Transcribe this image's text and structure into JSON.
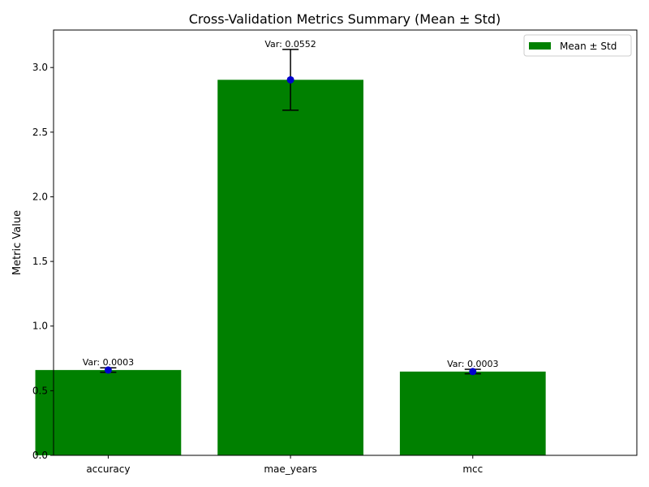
{
  "chart_data": {
    "type": "bar",
    "title": "Cross-Validation Metrics Summary (Mean ± Std)",
    "xlabel": "",
    "ylabel": "Metric Value",
    "categories": [
      "accuracy",
      "mae_years",
      "mcc"
    ],
    "values": [
      0.66,
      2.905,
      0.648
    ],
    "std": [
      0.0173,
      0.235,
      0.0173
    ],
    "annotations": [
      "Var: 0.0003",
      "Var: 0.0552",
      "Var: 0.0003"
    ],
    "ylim": [
      0,
      3.29
    ],
    "yticks": [
      0.0,
      0.5,
      1.0,
      1.5,
      2.0,
      2.5,
      3.0
    ],
    "ytick_labels": [
      "0.0",
      "0.5",
      "1.0",
      "1.5",
      "2.0",
      "2.5",
      "3.0"
    ],
    "grid": false,
    "legend": {
      "placement": "top-right",
      "entries": [
        "Mean ± Std"
      ]
    },
    "colors": {
      "bar": "#008000",
      "marker": "#0000cd",
      "errorbar": "#000000"
    }
  }
}
